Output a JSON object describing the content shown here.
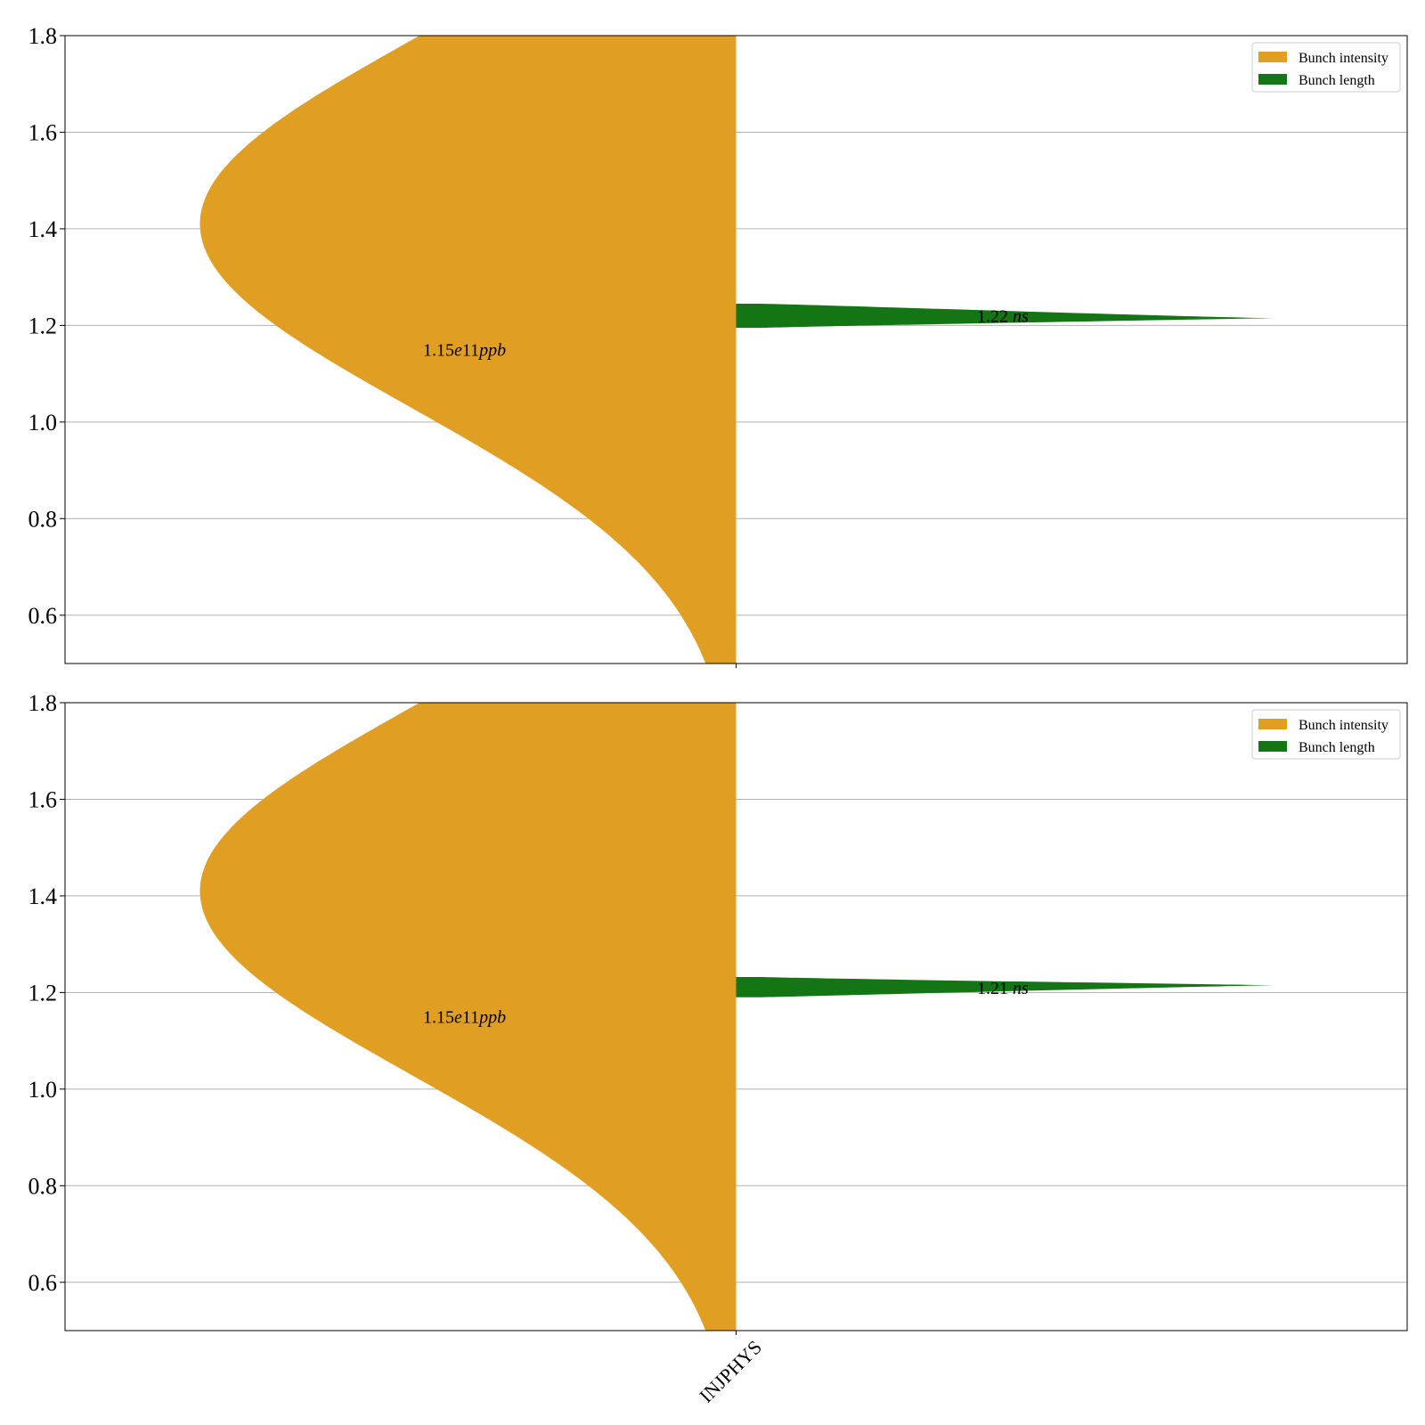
{
  "chart_data": [
    {
      "type": "violin",
      "categories": [
        "INJPHYS"
      ],
      "ylim": [
        0.5,
        1.8
      ],
      "yticks": [
        "0.6",
        "0.8",
        "1.0",
        "1.2",
        "1.4",
        "1.6",
        "1.8"
      ],
      "grid": true,
      "legend_position": "upper-right",
      "series": [
        {
          "name": "Bunch intensity",
          "side": "left",
          "color": "#e09e22",
          "center": 1.41,
          "spread": 0.38,
          "annotation": {
            "prefix": "1.15",
            "italic": "e",
            "suffix": "11",
            "unit": "ppb",
            "y": 1.15
          }
        },
        {
          "name": "Bunch length",
          "side": "right",
          "color": "#137513",
          "center": 1.215,
          "top": 1.245,
          "bottom": 1.195,
          "annotation": {
            "value": "1.22",
            "unit": "ns",
            "y": 1.22
          }
        }
      ]
    },
    {
      "type": "violin",
      "categories": [
        "INJPHYS"
      ],
      "ylim": [
        0.5,
        1.8
      ],
      "yticks": [
        "0.6",
        "0.8",
        "1.0",
        "1.2",
        "1.4",
        "1.6",
        "1.8"
      ],
      "grid": true,
      "legend_position": "upper-right",
      "series": [
        {
          "name": "Bunch intensity",
          "side": "left",
          "color": "#e09e22",
          "center": 1.41,
          "spread": 0.38,
          "annotation": {
            "prefix": "1.15",
            "italic": "e",
            "suffix": "11",
            "unit": "ppb",
            "y": 1.15
          }
        },
        {
          "name": "Bunch length",
          "side": "right",
          "color": "#137513",
          "center": 1.215,
          "top": 1.232,
          "bottom": 1.19,
          "annotation": {
            "value": "1.21",
            "unit": "ns",
            "y": 1.21
          }
        }
      ]
    }
  ]
}
